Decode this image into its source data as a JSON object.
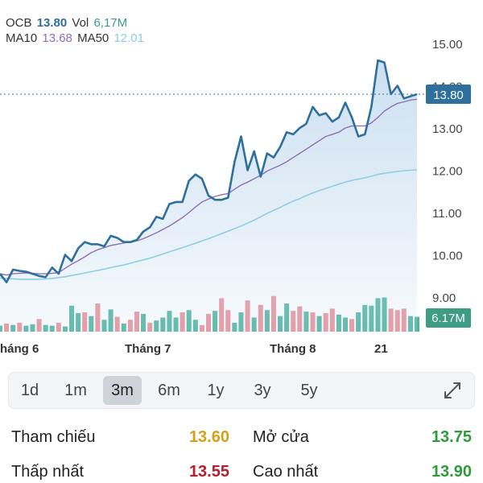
{
  "header": {
    "symbol": "OCB",
    "price": "13.80",
    "vol_label": "Vol",
    "vol_value": "6,17M",
    "ma10_label": "MA10",
    "ma10_value": "13.68",
    "ma50_label": "MA50",
    "ma50_value": "12.01"
  },
  "chart_data": {
    "type": "line",
    "y_ticks": [
      "15.00",
      "14.00",
      "13.00",
      "12.00",
      "11.00",
      "10.00",
      "9.00"
    ],
    "y_tick_values": [
      15,
      14,
      13,
      12,
      11,
      10,
      9
    ],
    "ylim": [
      8.2,
      15.6
    ],
    "x_labels": [
      "háng 6",
      "Tháng 7",
      "Tháng 8",
      "21"
    ],
    "current_price_label": "13.80",
    "current_price": 13.8,
    "current_volume_label": "6.17M",
    "series": [
      {
        "name": "OCB",
        "values": [
          9.55,
          9.35,
          9.65,
          9.62,
          9.6,
          9.55,
          9.5,
          9.47,
          9.7,
          9.55,
          10.0,
          9.85,
          10.15,
          10.3,
          10.25,
          10.25,
          10.2,
          10.45,
          10.4,
          10.3,
          10.3,
          10.35,
          10.55,
          10.65,
          10.9,
          10.85,
          11.2,
          11.25,
          11.25,
          11.75,
          11.9,
          11.8,
          11.4,
          11.3,
          11.3,
          11.35,
          12.2,
          12.8,
          12.0,
          12.45,
          11.85,
          12.4,
          12.3,
          12.55,
          12.9,
          12.85,
          13.0,
          13.1,
          13.5,
          13.3,
          13.35,
          13.15,
          13.25,
          13.6,
          13.25,
          12.8,
          12.85,
          13.5,
          14.6,
          14.55,
          13.8,
          14.0,
          13.7,
          13.75,
          13.8
        ]
      },
      {
        "name": "MA10",
        "values": [
          9.55,
          9.52,
          9.55,
          9.56,
          9.57,
          9.56,
          9.55,
          9.55,
          9.56,
          9.58,
          9.68,
          9.78,
          9.86,
          9.95,
          10.05,
          10.12,
          10.17,
          10.22,
          10.25,
          10.28,
          10.3,
          10.33,
          10.38,
          10.45,
          10.52,
          10.6,
          10.68,
          10.78,
          10.88,
          11.0,
          11.13,
          11.25,
          11.32,
          11.38,
          11.42,
          11.45,
          11.55,
          11.65,
          11.72,
          11.8,
          11.88,
          11.98,
          12.05,
          12.12,
          12.2,
          12.3,
          12.4,
          12.5,
          12.6,
          12.7,
          12.8,
          12.85,
          12.9,
          13.0,
          13.05,
          13.05,
          13.05,
          13.12,
          13.25,
          13.4,
          13.5,
          13.58,
          13.62,
          13.66,
          13.68
        ]
      },
      {
        "name": "MA50",
        "values": [
          9.45,
          9.44,
          9.43,
          9.42,
          9.42,
          9.42,
          9.42,
          9.43,
          9.44,
          9.46,
          9.48,
          9.51,
          9.54,
          9.57,
          9.6,
          9.63,
          9.66,
          9.7,
          9.73,
          9.76,
          9.8,
          9.84,
          9.88,
          9.92,
          9.97,
          10.02,
          10.07,
          10.12,
          10.17,
          10.22,
          10.27,
          10.33,
          10.38,
          10.44,
          10.5,
          10.56,
          10.62,
          10.68,
          10.75,
          10.82,
          10.9,
          10.98,
          11.05,
          11.12,
          11.2,
          11.27,
          11.33,
          11.4,
          11.46,
          11.52,
          11.57,
          11.62,
          11.67,
          11.72,
          11.76,
          11.79,
          11.82,
          11.86,
          11.9,
          11.93,
          11.95,
          11.97,
          11.99,
          12.0,
          12.01
        ]
      }
    ],
    "volume_series": {
      "name": "Volume",
      "values": [
        0.8,
        1.1,
        0.9,
        1.2,
        0.8,
        1.0,
        1.7,
        0.9,
        0.8,
        1.2,
        0.7,
        3.5,
        2.5,
        2.6,
        2.1,
        3.8,
        1.6,
        3.0,
        2.0,
        1.1,
        1.6,
        2.7,
        2.4,
        1.2,
        1.5,
        1.9,
        2.8,
        1.9,
        2.6,
        2.9,
        1.6,
        0.9,
        2.4,
        2.8,
        4.5,
        2.9,
        1.2,
        2.6,
        4.2,
        1.9,
        3.6,
        2.9,
        4.8,
        2.1,
        3.8,
        2.8,
        3.4,
        2.7,
        2.6,
        2.1,
        2.5,
        3.1,
        2.3,
        1.9,
        1.7,
        2.6,
        3.6,
        3.5,
        4.5,
        4.6,
        3.1,
        2.9,
        3.1,
        2.1,
        2.0
      ],
      "up": [
        1,
        0,
        1,
        0,
        1,
        1,
        0,
        1,
        1,
        0,
        1,
        1,
        1,
        0,
        1,
        0,
        1,
        1,
        0,
        1,
        0,
        0,
        1,
        0,
        1,
        1,
        1,
        1,
        0,
        1,
        1,
        0,
        0,
        1,
        0,
        0,
        1,
        1,
        0,
        1,
        0,
        1,
        0,
        1,
        1,
        0,
        0,
        1,
        0,
        1,
        0,
        0,
        1,
        1,
        0,
        1,
        1,
        1,
        1,
        1,
        0,
        0,
        0,
        1,
        1
      ]
    },
    "grid": false
  },
  "colors": {
    "price_line": "#2e6f9e",
    "price_fill": "#c9def0",
    "ma10": "#8d6fb8",
    "ma50": "#8ccfe3",
    "volume_up": "#54b4a2",
    "volume_down": "#e8939a",
    "price_label_bg": "#2e6f9e",
    "volume_label_bg": "#3e9b84",
    "yellow": "#d4a017",
    "red": "#b3202b",
    "green": "#2e9b3a"
  },
  "tabs": [
    {
      "label": "1d"
    },
    {
      "label": "1m"
    },
    {
      "label": "3m",
      "active": true
    },
    {
      "label": "6m"
    },
    {
      "label": "1y"
    },
    {
      "label": "3y"
    },
    {
      "label": "5y"
    }
  ],
  "stats": {
    "ref_label": "Tham chiếu",
    "ref_value": "13.60",
    "open_label": "Mở cửa",
    "open_value": "13.75",
    "low_label": "Thấp nhất",
    "low_value": "13.55",
    "high_label": "Cao nhất",
    "high_value": "13.90"
  }
}
